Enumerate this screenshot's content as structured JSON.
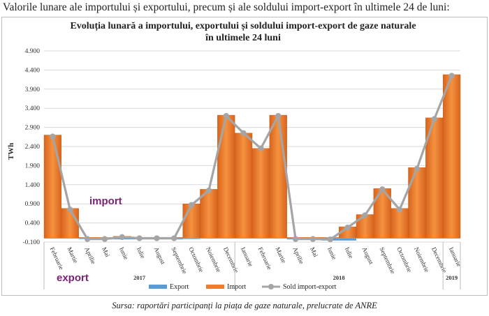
{
  "page": {
    "caption": "Valorile lunare ale importului și exportului, precum și ale soldului import-export în ultimele 24 de luni:",
    "source": "Sursa: raportări participanți la piața de gaze naturale, prelucrate de ANRE"
  },
  "chart_data": {
    "type": "area",
    "title": [
      "Evoluția lunară a importului, exportului și soldului import-export de gaze naturale",
      "în ultimele 24 luni"
    ],
    "ylabel": "TWh",
    "xlabel": "",
    "ylim": [
      -0.1,
      4.9
    ],
    "yticks": [
      "-0.100",
      "0.400",
      "0.900",
      "1.400",
      "1.900",
      "2.400",
      "2.900",
      "3.400",
      "3.900",
      "4.400",
      "4.900"
    ],
    "grid": true,
    "legend_position": "bottom",
    "categories": [
      "Februarie",
      "Martie",
      "Aprilie",
      "Mai",
      "Iunie",
      "Iulie",
      "August",
      "Septembrie",
      "Octombrie",
      "Noiembrie",
      "Decembrie",
      "Ianuarie",
      "Februarie",
      "Martie",
      "Aprilie",
      "Mai",
      "Iunie",
      "Iulie",
      "August",
      "Septembrie",
      "Octombrie",
      "Noiembrie",
      "Decembrie",
      "Ianuarie"
    ],
    "years": [
      {
        "label": "2017",
        "start": 0,
        "end": 10
      },
      {
        "label": "2018",
        "start": 11,
        "end": 22
      },
      {
        "label": "2019",
        "start": 23,
        "end": 23
      }
    ],
    "series": [
      {
        "name": "Export",
        "color": "#5b9bd5",
        "values": [
          0,
          0,
          -0.02,
          -0.03,
          -0.03,
          -0.03,
          -0.03,
          -0.03,
          -0.02,
          -0.01,
          0,
          0,
          0,
          0,
          -0.03,
          -0.04,
          -0.06,
          -0.06,
          0,
          0,
          0,
          0,
          0,
          0
        ]
      },
      {
        "name": "Import",
        "color": "#ed7d31",
        "values": [
          2.7,
          0.78,
          0.02,
          0.02,
          0.05,
          0.02,
          0.02,
          0.02,
          0.9,
          1.28,
          3.22,
          2.75,
          2.35,
          3.22,
          0.02,
          0.02,
          0.02,
          0.3,
          0.62,
          1.3,
          0.78,
          1.85,
          3.15,
          4.28
        ]
      },
      {
        "name": "Sold import-export",
        "color": "#a5a5a5",
        "values": [
          2.66,
          0.75,
          -0.02,
          -0.02,
          0.03,
          0.0,
          0.0,
          0.0,
          0.87,
          1.25,
          3.2,
          2.75,
          2.35,
          3.2,
          -0.02,
          -0.02,
          -0.03,
          0.28,
          0.6,
          1.28,
          0.75,
          1.82,
          3.12,
          4.25
        ]
      }
    ],
    "annotations": [
      "import",
      "export"
    ]
  }
}
